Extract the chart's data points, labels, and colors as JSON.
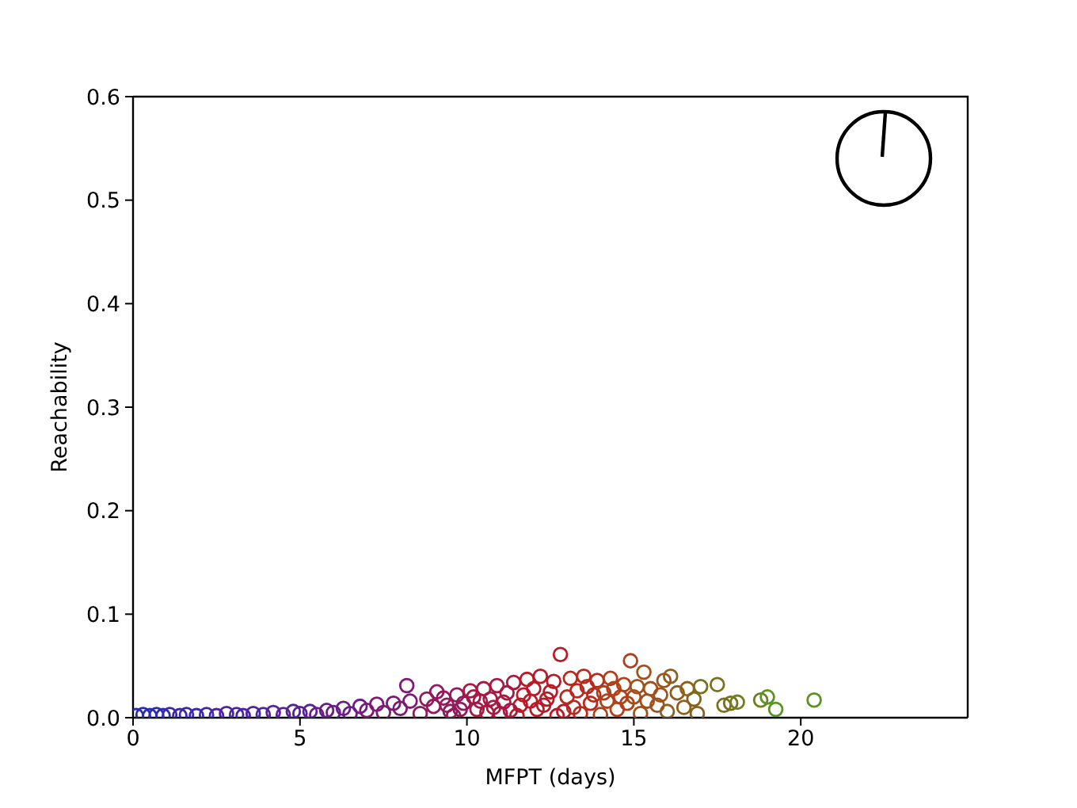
{
  "chart_data": {
    "type": "scatter",
    "xlabel": "MFPT (days)",
    "ylabel": "Reachability",
    "marker": "circle",
    "xlim": [
      0,
      25
    ],
    "xticks": [
      0,
      5,
      10,
      15,
      20
    ],
    "ylim": [
      0,
      0.6
    ],
    "yticks": [
      {
        "value": 0,
        "label": "0.0"
      },
      0.1,
      0.2,
      0.3,
      0.4,
      0.5,
      0.6
    ],
    "x": [
      0.1,
      0.3,
      0.5,
      0.7,
      0.9,
      1.1,
      1.4,
      1.6,
      1.9,
      2.2,
      2.5,
      2.8,
      3.1,
      3.3,
      3.6,
      3.9,
      4.2,
      4.5,
      4.8,
      5.0,
      5.3,
      5.5,
      5.8,
      6.0,
      6.3,
      6.5,
      6.8,
      7.0,
      7.3,
      7.5,
      7.8,
      8.0,
      8.2,
      8.3,
      8.6,
      8.8,
      9.0,
      9.1,
      9.3,
      9.5,
      9.6,
      9.7,
      9.9,
      10.1,
      10.3,
      10.4,
      10.5,
      10.7,
      10.8,
      10.9,
      11.0,
      11.2,
      11.4,
      11.5,
      11.6,
      11.8,
      11.9,
      12.0,
      12.1,
      12.2,
      12.4,
      12.6,
      12.7,
      12.8,
      12.9,
      13.1,
      13.2,
      13.3,
      13.5,
      13.7,
      13.8,
      13.9,
      14.0,
      14.1,
      14.3,
      14.5,
      14.7,
      14.8,
      14.9,
      15.0,
      15.2,
      15.3,
      15.5,
      15.7,
      15.9,
      16.0,
      16.1,
      16.3,
      16.5,
      16.6,
      16.8,
      16.9,
      17.0,
      17.5,
      17.7,
      17.9,
      18.1,
      18.8,
      19.0,
      19.25,
      20.4,
      9.4,
      9.8,
      10.2,
      10.6,
      11.1,
      11.3,
      11.7,
      12.3,
      12.5,
      13.0,
      13.4,
      13.6,
      14.2,
      14.4,
      14.6,
      15.1,
      15.4,
      15.8
    ],
    "values": [
      0.002,
      0.003,
      0.002,
      0.003,
      0.002,
      0.003,
      0.002,
      0.003,
      0.002,
      0.003,
      0.002,
      0.004,
      0.003,
      0.002,
      0.004,
      0.003,
      0.005,
      0.003,
      0.006,
      0.004,
      0.006,
      0.003,
      0.007,
      0.005,
      0.009,
      0.004,
      0.011,
      0.007,
      0.013,
      0.005,
      0.014,
      0.009,
      0.031,
      0.016,
      0.004,
      0.018,
      0.011,
      0.025,
      0.019,
      0.006,
      0.002,
      0.022,
      0.014,
      0.026,
      0.008,
      0.016,
      0.028,
      0.018,
      0.01,
      0.031,
      0.004,
      0.024,
      0.034,
      0.002,
      0.012,
      0.037,
      0.016,
      0.028,
      0.008,
      0.04,
      0.018,
      0.035,
      0.002,
      0.061,
      0.006,
      0.038,
      0.01,
      0.026,
      0.04,
      0.014,
      0.022,
      0.036,
      0.003,
      0.024,
      0.038,
      0.008,
      0.032,
      0.014,
      0.055,
      0.02,
      0.004,
      0.044,
      0.028,
      0.012,
      0.036,
      0.006,
      0.04,
      0.024,
      0.01,
      0.028,
      0.018,
      0.004,
      0.03,
      0.032,
      0.012,
      0.014,
      0.015,
      0.017,
      0.02,
      0.008,
      0.017,
      0.012,
      0.008,
      0.02,
      0.005,
      0.015,
      0.007,
      0.022,
      0.012,
      0.025,
      0.02,
      0.004,
      0.03,
      0.016,
      0.028,
      0.02,
      0.03,
      0.016,
      0.022
    ],
    "colors": [
      "#2a2ab8",
      "#2a2ab8",
      "#2a2ab8",
      "#2a2ab8",
      "#2a2ab8",
      "#3a28b0",
      "#3a28b0",
      "#3a28b0",
      "#3a28b0",
      "#3a28b0",
      "#4a24a4",
      "#4a24a4",
      "#4a24a4",
      "#4a24a4",
      "#4a24a4",
      "#4a24a4",
      "#5a2098",
      "#5a2098",
      "#5a2098",
      "#5a2098",
      "#5a2098",
      "#6c1c88",
      "#6c1c88",
      "#6c1c88",
      "#6c1c88",
      "#6c1c88",
      "#6c1c88",
      "#7e1a74",
      "#7e1a74",
      "#7e1a74",
      "#7e1a74",
      "#7e1a74",
      "#7e1a74",
      "#7e1a74",
      "#921a5c",
      "#921a5c",
      "#921a5c",
      "#921a5c",
      "#921a5c",
      "#921a5c",
      "#921a5c",
      "#921a5c",
      "#921a5c",
      "#a81842",
      "#a81842",
      "#a81842",
      "#a81842",
      "#a81842",
      "#a81842",
      "#a81842",
      "#a81842",
      "#a81842",
      "#a81842",
      "#b81a28",
      "#b81a28",
      "#b81a28",
      "#b81a28",
      "#b81a28",
      "#b81a28",
      "#b81a28",
      "#b81a28",
      "#b81a28",
      "#b81a28",
      "#b81a28",
      "#b81a28",
      "#b82a1e",
      "#b82a1e",
      "#b82a1e",
      "#b82a1e",
      "#b82a1e",
      "#b82a1e",
      "#b82a1e",
      "#b0401a",
      "#b0401a",
      "#b0401a",
      "#b0401a",
      "#b0401a",
      "#b0401a",
      "#b0401a",
      "#a0501a",
      "#a0501a",
      "#a0501a",
      "#a0501a",
      "#a0501a",
      "#a0501a",
      "#8c601a",
      "#8c601a",
      "#8c601a",
      "#8c601a",
      "#8c601a",
      "#8c601a",
      "#8c601a",
      "#7a701a",
      "#7a701a",
      "#7a701a",
      "#7a701a",
      "#6e801e",
      "#6e801e",
      "#5a9428",
      "#5a9428",
      "#5a9428",
      "#921a5c",
      "#921a5c",
      "#a81842",
      "#a81842",
      "#a81842",
      "#a81842",
      "#b81a28",
      "#b81a28",
      "#b81a28",
      "#b82a1e",
      "#b82a1e",
      "#b82a1e",
      "#b0401a",
      "#b0401a",
      "#b0401a",
      "#a0501a",
      "#a0501a",
      "#a0501a"
    ]
  }
}
